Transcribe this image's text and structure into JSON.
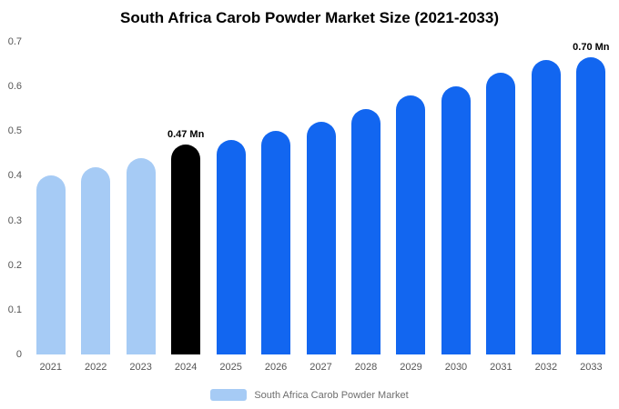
{
  "title": "South Africa Carob Powder Market Size (2021-2033)",
  "legend": {
    "label": "South Africa Carob Powder Market",
    "swatch_color": "#a6cbf5"
  },
  "colors": {
    "past": "#a6cbf5",
    "highlight": "#000000",
    "default": "#1266f0"
  },
  "chart_data": {
    "type": "bar",
    "title": "South Africa Carob Powder Market Size (2021-2033)",
    "categories": [
      "2021",
      "2022",
      "2023",
      "2024",
      "2025",
      "2026",
      "2027",
      "2028",
      "2029",
      "2030",
      "2031",
      "2032",
      "2033"
    ],
    "values": [
      0.4,
      0.42,
      0.44,
      0.47,
      0.48,
      0.5,
      0.52,
      0.55,
      0.58,
      0.6,
      0.63,
      0.66,
      0.7
    ],
    "bar_colors": [
      "past",
      "past",
      "past",
      "highlight",
      "default",
      "default",
      "default",
      "default",
      "default",
      "default",
      "default",
      "default",
      "default"
    ],
    "annotations": [
      {
        "index": 3,
        "text": "0.47 Mn"
      },
      {
        "index": 12,
        "text": "0.70 Mn"
      }
    ],
    "unit": "Mn",
    "xlabel": "",
    "ylabel": "",
    "ylim": [
      0,
      0.7
    ],
    "yticks": [
      "0",
      "0.1",
      "0.2",
      "0.3",
      "0.4",
      "0.5",
      "0.6",
      "0.7"
    ],
    "grid": false,
    "legend_position": "bottom"
  }
}
